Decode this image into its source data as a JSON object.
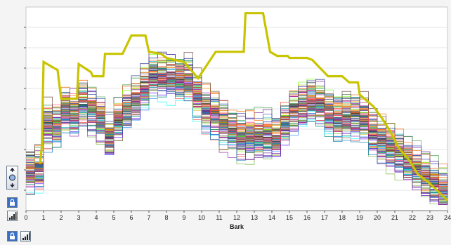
{
  "chart_data": {
    "type": "line",
    "title": "",
    "xlabel": "Bark",
    "ylabel": "",
    "x_ticks": [
      "0",
      "1",
      "2",
      "3",
      "4",
      "5",
      "6",
      "7",
      "8",
      "9",
      "10",
      "11",
      "12",
      "13",
      "14",
      "15",
      "16",
      "17",
      "18",
      "19",
      "20",
      "21",
      "22",
      "23",
      "24"
    ],
    "xlim": [
      0,
      24
    ],
    "ylim": [
      0,
      10
    ],
    "grid": true,
    "legend": "none",
    "series_count_approx": 80,
    "highlight_series": {
      "color": "#c8c400",
      "x": [
        0.8,
        0.9,
        1.0,
        1.8,
        2.0,
        2.9,
        3.0,
        3.7,
        3.8,
        4.4,
        4.5,
        5.2,
        5.5,
        6.0,
        6.8,
        7.0,
        7.7,
        8.0,
        9.0,
        9.8,
        10.8,
        11.0,
        12.4,
        12.5,
        13.5,
        13.9,
        14.3,
        14.9,
        15.0,
        16.0,
        16.3,
        17.2,
        17.5,
        18.0,
        18.4,
        18.9,
        19.0,
        19.8,
        20.3,
        20.8,
        21.2,
        21.8,
        22.3,
        22.9,
        23.4,
        24.0
      ],
      "y": [
        2.3,
        3.1,
        7.3,
        6.9,
        5.5,
        5.5,
        7.2,
        6.8,
        6.6,
        6.6,
        7.7,
        7.7,
        7.7,
        8.6,
        8.6,
        7.8,
        7.7,
        7.5,
        7.3,
        6.5,
        7.8,
        7.8,
        7.8,
        9.7,
        9.7,
        7.8,
        7.6,
        7.6,
        7.5,
        7.5,
        7.4,
        6.6,
        6.6,
        6.6,
        6.3,
        6.3,
        5.7,
        5.1,
        4.5,
        3.8,
        3.1,
        2.5,
        1.8,
        1.4,
        1.0,
        0.5
      ]
    },
    "palette": [
      "#d81b60",
      "#1e88e5",
      "#43a047",
      "#8e24aa",
      "#fb8c00",
      "#00acc1",
      "#3949ab",
      "#e53935",
      "#6d4c41",
      "#7cb342",
      "#c0ca33",
      "#5e35b1",
      "#00897b",
      "#f4511e",
      "#546e7a",
      "#ad1457",
      "#283593",
      "#2e7d32",
      "#6a1b9a",
      "#ef6c00",
      "#0277bd",
      "#9e9d24",
      "#4e342e",
      "#ff4081",
      "#18ffff",
      "#76ff03",
      "#651fff",
      "#263238"
    ]
  },
  "toolbar": {
    "icons": [
      "zoom-fit-icon",
      "lock-icon",
      "signal-bars-icon",
      "lock-icon",
      "signal-bars-icon"
    ]
  }
}
